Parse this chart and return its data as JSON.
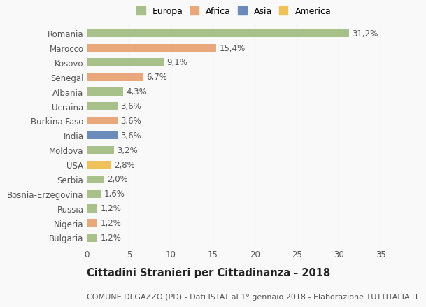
{
  "countries": [
    "Romania",
    "Marocco",
    "Kosovo",
    "Senegal",
    "Albania",
    "Ucraina",
    "Burkina Faso",
    "India",
    "Moldova",
    "USA",
    "Serbia",
    "Bosnia-Erzegovina",
    "Russia",
    "Nigeria",
    "Bulgaria"
  ],
  "values": [
    31.2,
    15.4,
    9.1,
    6.7,
    4.3,
    3.6,
    3.6,
    3.6,
    3.2,
    2.8,
    2.0,
    1.6,
    1.2,
    1.2,
    1.2
  ],
  "labels": [
    "31,2%",
    "15,4%",
    "9,1%",
    "6,7%",
    "4,3%",
    "3,6%",
    "3,6%",
    "3,6%",
    "3,2%",
    "2,8%",
    "2,0%",
    "1,6%",
    "1,2%",
    "1,2%",
    "1,2%"
  ],
  "continents": [
    "Europa",
    "Africa",
    "Europa",
    "Africa",
    "Europa",
    "Europa",
    "Africa",
    "Asia",
    "Europa",
    "America",
    "Europa",
    "Europa",
    "Europa",
    "Africa",
    "Europa"
  ],
  "colors": {
    "Europa": "#a8c08a",
    "Africa": "#e8a87c",
    "Asia": "#6b8cba",
    "America": "#f0c05a"
  },
  "xlim": [
    0,
    35
  ],
  "xticks": [
    0,
    5,
    10,
    15,
    20,
    25,
    30,
    35
  ],
  "title": "Cittadini Stranieri per Cittadinanza - 2018",
  "subtitle": "COMUNE DI GAZZO (PD) - Dati ISTAT al 1° gennaio 2018 - Elaborazione TUTTITALIA.IT",
  "background_color": "#f9f9f9",
  "grid_color": "#dddddd",
  "bar_height": 0.55,
  "label_fontsize": 8.5,
  "tick_fontsize": 8.5,
  "title_fontsize": 10.5,
  "subtitle_fontsize": 8,
  "legend_fontsize": 9
}
